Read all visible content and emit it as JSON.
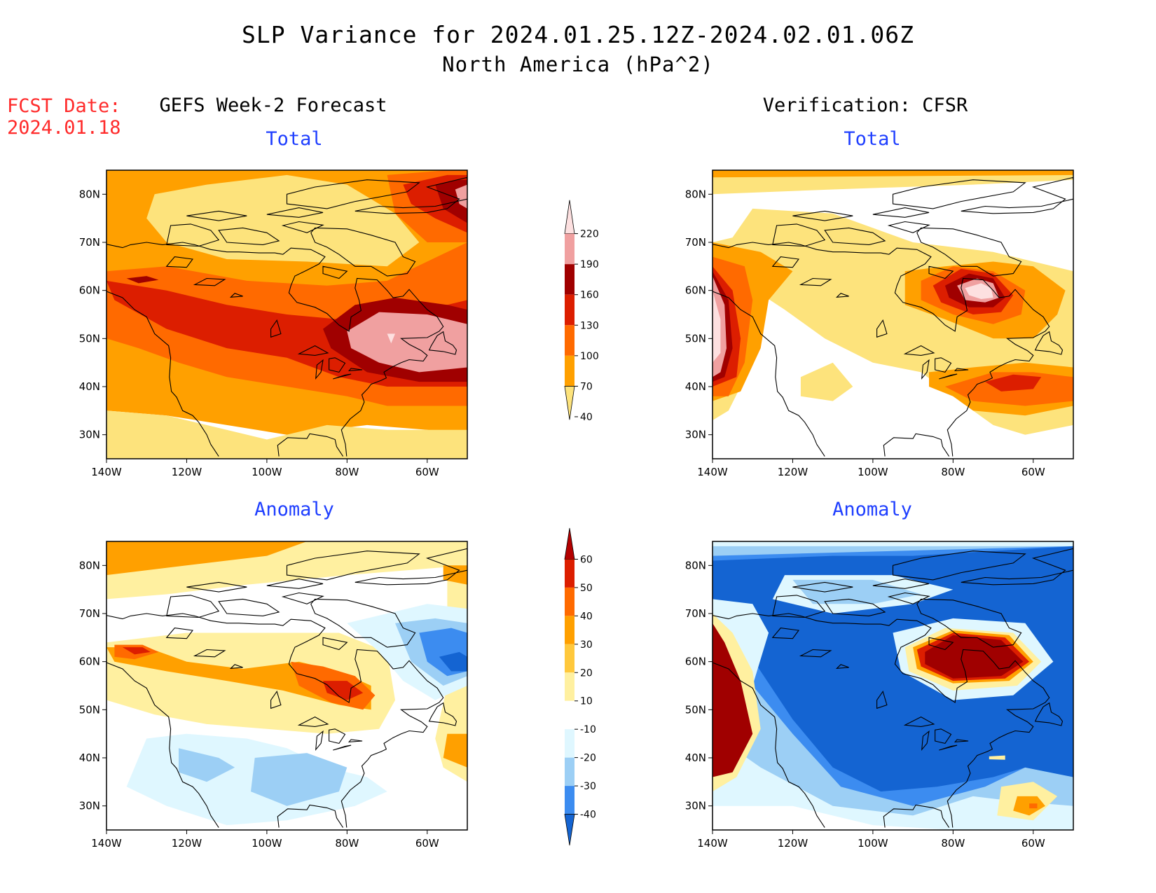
{
  "header": {
    "title": "SLP Variance for 2024.01.25.12Z-2024.02.01.06Z",
    "subtitle": "North America (hPa^2)",
    "fcst_label": "FCST Date:",
    "fcst_date": "2024.01.18"
  },
  "columns": {
    "left": "GEFS Week-2 Forecast",
    "right": "Verification: CFSR"
  },
  "panels": [
    {
      "id": "fcst-total",
      "label": "Total"
    },
    {
      "id": "verif-total",
      "label": "Total"
    },
    {
      "id": "fcst-anomaly",
      "label": "Anomaly"
    },
    {
      "id": "verif-anomaly",
      "label": "Anomaly"
    }
  ],
  "axes": {
    "lat_ticks": [
      "80N",
      "70N",
      "60N",
      "50N",
      "40N",
      "30N"
    ],
    "lon_ticks": [
      "140W",
      "120W",
      "100W",
      "80W",
      "60W"
    ],
    "lon_range": [
      -140,
      -50
    ],
    "lat_range": [
      25,
      85
    ]
  },
  "total_colorbar": {
    "levels": [
      "220",
      "190",
      "160",
      "130",
      "100",
      "70",
      "40"
    ],
    "colors": [
      "#fde0e0",
      "#f0a0a0",
      "#a00000",
      "#dc1e00",
      "#ff6a00",
      "#ffa000",
      "#fde37c"
    ]
  },
  "anomaly_colorbar": {
    "levels": [
      "60",
      "50",
      "40",
      "30",
      "20",
      "10",
      "-10",
      "-20",
      "-30",
      "-40"
    ],
    "colors": [
      "#b40000",
      "#dc1e00",
      "#ff6a00",
      "#ffa000",
      "#ffc83c",
      "#fff0a0",
      "#ffffff",
      "#dff7ff",
      "#9ccff5",
      "#3c8cf0",
      "#1464d2"
    ]
  },
  "fills": {
    "yellow": "#fde37c",
    "orange": "#ffa000",
    "darkorange": "#ff6a00",
    "red": "#dc1e00",
    "darkred": "#a00000",
    "pink": "#f0a0a0",
    "lightpink": "#fde0e0",
    "lightyellow": "#fff0a0",
    "paleblue": "#dff7ff",
    "lightblue": "#9ccff5",
    "blue": "#3c8cf0",
    "darkblue": "#1464d2"
  }
}
